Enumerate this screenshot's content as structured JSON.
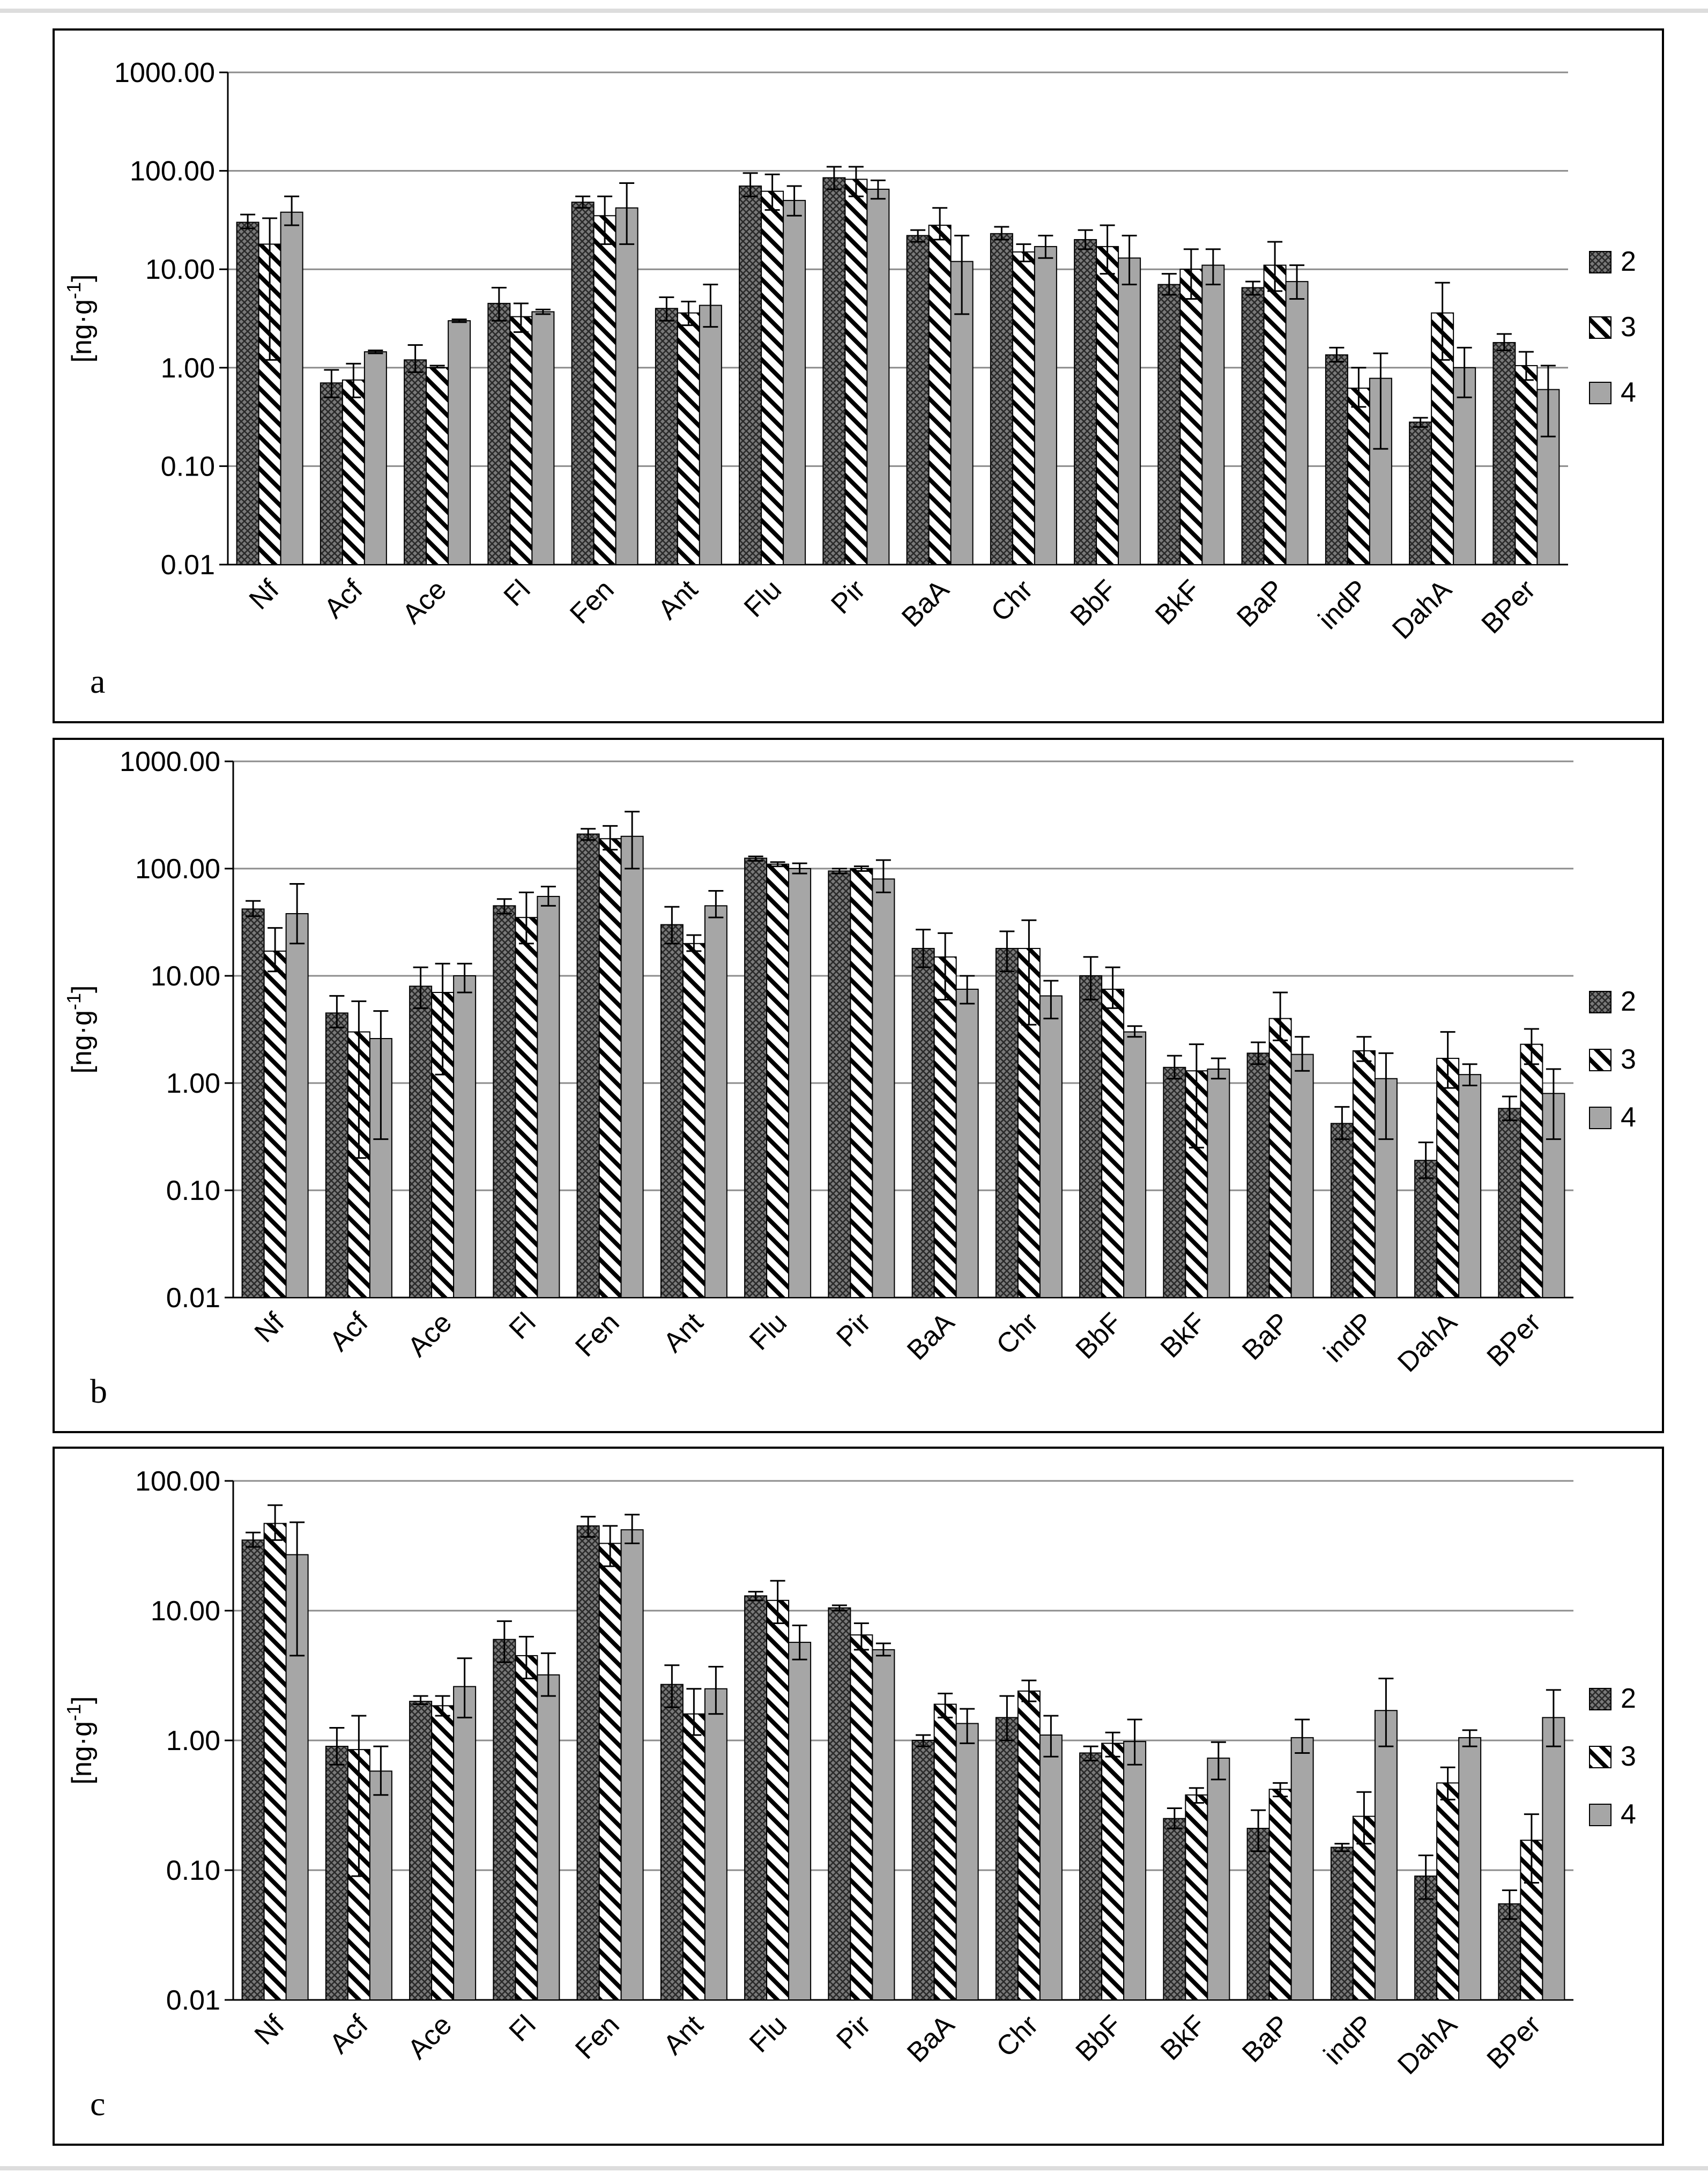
{
  "colors": {
    "series_2": "#6e6e6e",
    "series_3": "#ffffff",
    "series_4": "#a6a6a6",
    "grid": "#8c8c8c",
    "frame": "#000000"
  },
  "legend": [
    "2",
    "3",
    "4"
  ],
  "chart_data": [
    {
      "type": "bar",
      "panel": "a",
      "yscale": "log",
      "ylabel": "[ng·g-1]",
      "ylim": [
        0.01,
        1000
      ],
      "yticks": [
        "0.01",
        "0.10",
        "1.00",
        "10.00",
        "100.00",
        "1000.00"
      ],
      "categories": [
        "Nf",
        "Acf",
        "Ace",
        "Fl",
        "Fen",
        "Ant",
        "Flu",
        "Pir",
        "BaA",
        "Chr",
        "BbF",
        "BkF",
        "BaP",
        "indP",
        "DahA",
        "BPer"
      ],
      "series": [
        {
          "name": "2",
          "values": [
            30,
            0.7,
            1.2,
            4.5,
            48,
            4.0,
            70,
            85,
            22,
            23,
            20,
            7.0,
            6.5,
            1.35,
            0.28,
            1.8
          ],
          "error_low": [
            26,
            0.5,
            0.9,
            3.0,
            42,
            3.0,
            55,
            65,
            19,
            20,
            16,
            5.5,
            5.5,
            1.15,
            0.25,
            1.5
          ],
          "error_high": [
            36,
            0.95,
            1.7,
            6.5,
            55,
            5.2,
            95,
            110,
            25,
            27,
            25,
            9.0,
            7.5,
            1.6,
            0.31,
            2.2
          ]
        },
        {
          "name": "3",
          "values": [
            18,
            0.75,
            1.0,
            3.3,
            35,
            3.6,
            62,
            82,
            28,
            15,
            17,
            10,
            11,
            0.62,
            3.6,
            1.05
          ],
          "error_low": [
            1.2,
            0.5,
            1.0,
            2.3,
            18,
            2.7,
            40,
            55,
            20,
            12,
            9,
            5,
            6,
            0.4,
            1.2,
            0.75
          ],
          "error_high": [
            33,
            1.1,
            1.05,
            4.5,
            55,
            4.7,
            92,
            110,
            42,
            18,
            28,
            16,
            19,
            1.0,
            7.3,
            1.45
          ]
        },
        {
          "name": "4",
          "values": [
            38,
            1.45,
            3.0,
            3.7,
            42,
            4.3,
            50,
            65,
            12,
            17,
            13,
            11,
            7.5,
            0.78,
            1.0,
            0.6
          ],
          "error_low": [
            28,
            1.4,
            2.9,
            3.5,
            18,
            2.6,
            35,
            52,
            3.5,
            13,
            7,
            7,
            5,
            0.15,
            0.5,
            0.2
          ],
          "error_high": [
            55,
            1.5,
            3.1,
            3.9,
            75,
            7.0,
            70,
            80,
            22,
            22,
            22,
            16,
            11,
            1.4,
            1.6,
            1.05
          ]
        }
      ]
    },
    {
      "type": "bar",
      "panel": "b",
      "yscale": "log",
      "ylabel": "[ng·g-1]",
      "ylim": [
        0.01,
        1000
      ],
      "yticks": [
        "0.01",
        "0.10",
        "1.00",
        "10.00",
        "100.00",
        "1000.00"
      ],
      "categories": [
        "Nf",
        "Acf",
        "Ace",
        "Fl",
        "Fen",
        "Ant",
        "Flu",
        "Pir",
        "BaA",
        "Chr",
        "BbF",
        "BkF",
        "BaP",
        "indP",
        "DahA",
        "BPer"
      ],
      "series": [
        {
          "name": "2",
          "values": [
            42,
            4.5,
            8.0,
            45,
            210,
            30,
            125,
            95,
            18,
            18,
            10,
            1.4,
            1.9,
            0.42,
            0.19,
            0.58
          ],
          "error_low": [
            36,
            3.3,
            5.0,
            38,
            185,
            20,
            118,
            90,
            12,
            11,
            6,
            1.1,
            1.5,
            0.3,
            0.13,
            0.45
          ],
          "error_high": [
            50,
            6.5,
            12,
            52,
            235,
            44,
            130,
            100,
            27,
            26,
            15,
            1.8,
            2.4,
            0.6,
            0.28,
            0.75
          ]
        },
        {
          "name": "3",
          "values": [
            17,
            3.0,
            7.0,
            35,
            190,
            20,
            110,
            100,
            15,
            18,
            7.5,
            1.3,
            4.0,
            2.0,
            1.7,
            2.3
          ],
          "error_low": [
            11,
            0.2,
            1.2,
            20,
            150,
            17,
            105,
            95,
            6,
            3.5,
            5,
            0.25,
            2.5,
            1.6,
            0.9,
            1.5
          ],
          "error_high": [
            28,
            5.8,
            13,
            60,
            250,
            24,
            115,
            105,
            25,
            33,
            12,
            2.3,
            7.0,
            2.7,
            3.0,
            3.2
          ]
        },
        {
          "name": "4",
          "values": [
            38,
            2.6,
            10,
            55,
            200,
            45,
            100,
            80,
            7.5,
            6.5,
            3.0,
            1.35,
            1.85,
            1.1,
            1.2,
            0.8
          ],
          "error_low": [
            20,
            0.3,
            7,
            45,
            100,
            35,
            90,
            60,
            5.5,
            4.0,
            2.7,
            1.1,
            1.3,
            0.3,
            0.95,
            0.3
          ],
          "error_high": [
            72,
            4.7,
            13,
            68,
            340,
            62,
            112,
            120,
            10,
            9.0,
            3.4,
            1.7,
            2.7,
            1.9,
            1.5,
            1.35
          ]
        }
      ]
    },
    {
      "type": "bar",
      "panel": "c",
      "yscale": "log",
      "ylabel": "[ng·g-1]",
      "ylim": [
        0.01,
        100
      ],
      "yticks": [
        "0.01",
        "0.10",
        "1.00",
        "10.00",
        "100.00"
      ],
      "categories": [
        "Nf",
        "Acf",
        "Ace",
        "Fl",
        "Fen",
        "Ant",
        "Flu",
        "Pir",
        "BaA",
        "Chr",
        "BbF",
        "BkF",
        "BaP",
        "indP",
        "DahA",
        "BPer"
      ],
      "series": [
        {
          "name": "2",
          "values": [
            35,
            0.9,
            2.0,
            6.0,
            45,
            2.7,
            13,
            10.5,
            1.0,
            1.5,
            0.8,
            0.25,
            0.21,
            0.15,
            0.09,
            0.055
          ],
          "error_low": [
            31,
            0.65,
            1.9,
            4.0,
            37,
            1.8,
            12,
            10,
            0.9,
            1.0,
            0.7,
            0.21,
            0.14,
            0.14,
            0.06,
            0.042
          ],
          "error_high": [
            40,
            1.25,
            2.2,
            8.3,
            53,
            3.8,
            14,
            11,
            1.1,
            2.2,
            0.9,
            0.3,
            0.29,
            0.16,
            0.13,
            0.07
          ]
        },
        {
          "name": "3",
          "values": [
            47,
            0.85,
            1.85,
            4.5,
            33,
            1.6,
            12,
            6.5,
            1.9,
            2.4,
            0.95,
            0.38,
            0.42,
            0.26,
            0.47,
            0.17
          ],
          "error_low": [
            35,
            0.09,
            1.55,
            3.0,
            22,
            1.1,
            8,
            5.0,
            1.5,
            2.0,
            0.75,
            0.33,
            0.37,
            0.16,
            0.35,
            0.08
          ],
          "error_high": [
            65,
            1.55,
            2.2,
            6.3,
            45,
            2.5,
            17,
            8.0,
            2.3,
            2.9,
            1.15,
            0.43,
            0.47,
            0.4,
            0.62,
            0.27
          ]
        },
        {
          "name": "4",
          "values": [
            27,
            0.58,
            2.6,
            3.2,
            42,
            2.5,
            5.7,
            5.0,
            1.35,
            1.1,
            0.98,
            0.73,
            1.05,
            1.7,
            1.05,
            1.5
          ],
          "error_low": [
            4.5,
            0.38,
            1.5,
            2.2,
            33,
            1.6,
            4.2,
            4.5,
            0.95,
            0.75,
            0.65,
            0.5,
            0.8,
            0.9,
            0.9,
            0.9
          ],
          "error_high": [
            48,
            0.9,
            4.3,
            4.7,
            55,
            3.7,
            7.7,
            5.6,
            1.75,
            1.55,
            1.45,
            0.97,
            1.45,
            3.0,
            1.2,
            2.45
          ]
        }
      ]
    }
  ]
}
